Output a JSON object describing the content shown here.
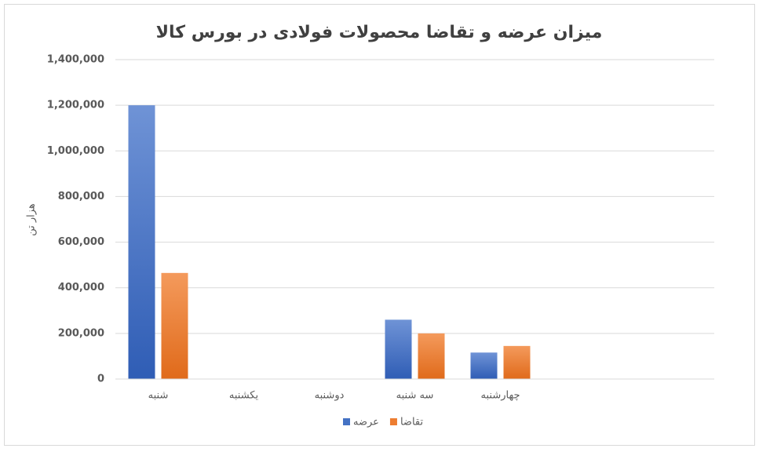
{
  "chart_data": {
    "type": "bar",
    "title": "میزان عرضه و تقاضا محصولات فولادی در بورس کالا",
    "y_label": "هزار تن",
    "categories": [
      "شنبه",
      "یکشنبه",
      "دوشنبه",
      "سه شنبه",
      "چهارشنبه",
      null,
      null
    ],
    "series": [
      {
        "name": "عرضه",
        "color": "#4472c4",
        "values": [
          1200000,
          0,
          0,
          260000,
          116000,
          null,
          null
        ]
      },
      {
        "name": "تقاضا",
        "color": "#ed7d31",
        "values": [
          465000,
          0,
          0,
          200000,
          145000,
          null,
          null
        ]
      }
    ],
    "ylim": [
      0,
      1400000
    ],
    "yticks": [
      0,
      {
        "value": 200000,
        "label": "200,000"
      },
      {
        "value": 400000,
        "label": "400,000"
      },
      {
        "value": 600000,
        "label": "600,000"
      },
      {
        "value": 800000,
        "label": "800,000"
      },
      {
        "value": 1000000,
        "label": "1,000,000"
      },
      {
        "value": 1200000,
        "label": "1,200,000"
      },
      {
        "value": 1400000,
        "label": "1,400,000"
      }
    ],
    "grid": true,
    "legend": "bottom"
  }
}
